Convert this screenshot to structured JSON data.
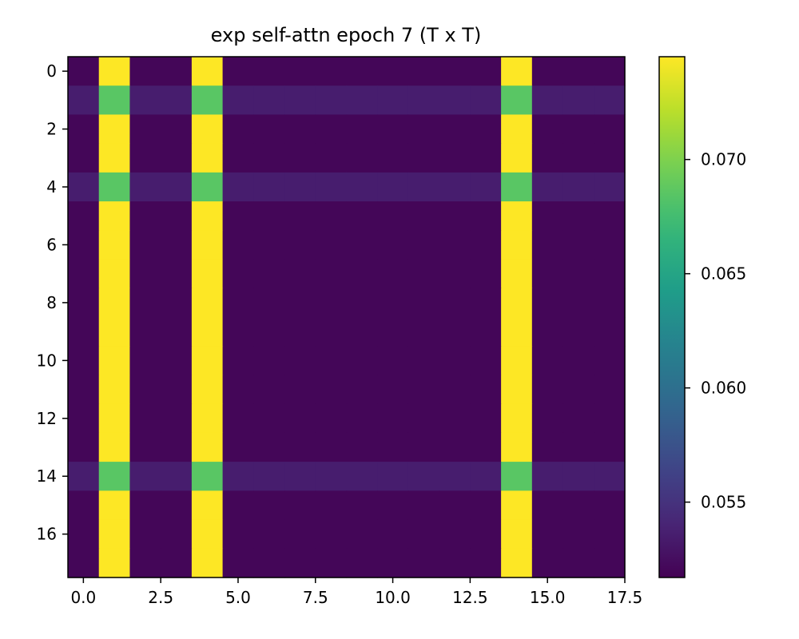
{
  "chart_data": {
    "type": "heatmap",
    "title": "exp self-attn epoch 7 (T x T)",
    "xlabel": "",
    "ylabel": "",
    "rows": 18,
    "cols": 18,
    "xlim": [
      -0.5,
      17.5
    ],
    "ylim": [
      17.5,
      -0.5
    ],
    "x_ticks": [
      0.0,
      2.5,
      5.0,
      7.5,
      10.0,
      12.5,
      15.0,
      17.5
    ],
    "x_tick_labels": [
      "0.0",
      "2.5",
      "5.0",
      "7.5",
      "10.0",
      "12.5",
      "15.0",
      "17.5"
    ],
    "y_ticks": [
      0,
      2,
      4,
      6,
      8,
      10,
      12,
      14,
      16
    ],
    "y_tick_labels": [
      "0",
      "2",
      "4",
      "6",
      "8",
      "10",
      "12",
      "14",
      "16"
    ],
    "value_range": [
      0.0517,
      0.0745
    ],
    "colorbar_ticks": [
      0.055,
      0.06,
      0.065,
      0.07
    ],
    "colorbar_tick_labels": [
      "0.055",
      "0.060",
      "0.065",
      "0.070"
    ],
    "colormap": "viridis",
    "values": [
      [
        0.052,
        0.0745,
        0.052,
        0.052,
        0.0745,
        0.052,
        0.052,
        0.052,
        0.052,
        0.052,
        0.052,
        0.052,
        0.052,
        0.052,
        0.0745,
        0.052,
        0.052,
        0.052
      ],
      [
        0.0535,
        0.0685,
        0.0535,
        0.0535,
        0.0685,
        0.0535,
        0.0535,
        0.0535,
        0.0535,
        0.0535,
        0.0535,
        0.0535,
        0.0535,
        0.0535,
        0.0685,
        0.0535,
        0.0535,
        0.0535
      ],
      [
        0.052,
        0.0745,
        0.052,
        0.052,
        0.0745,
        0.052,
        0.052,
        0.052,
        0.052,
        0.052,
        0.052,
        0.052,
        0.052,
        0.052,
        0.0745,
        0.052,
        0.052,
        0.052
      ],
      [
        0.052,
        0.0745,
        0.052,
        0.052,
        0.0745,
        0.052,
        0.052,
        0.052,
        0.052,
        0.052,
        0.052,
        0.052,
        0.052,
        0.052,
        0.0745,
        0.052,
        0.052,
        0.052
      ],
      [
        0.0535,
        0.0685,
        0.0535,
        0.0535,
        0.0685,
        0.0535,
        0.0535,
        0.0535,
        0.0535,
        0.0535,
        0.0535,
        0.0535,
        0.0535,
        0.0535,
        0.0685,
        0.0535,
        0.0535,
        0.0535
      ],
      [
        0.052,
        0.0745,
        0.052,
        0.052,
        0.0745,
        0.052,
        0.052,
        0.052,
        0.052,
        0.052,
        0.052,
        0.052,
        0.052,
        0.052,
        0.0745,
        0.052,
        0.052,
        0.052
      ],
      [
        0.052,
        0.0745,
        0.052,
        0.052,
        0.0745,
        0.052,
        0.052,
        0.052,
        0.052,
        0.052,
        0.052,
        0.052,
        0.052,
        0.052,
        0.0745,
        0.052,
        0.052,
        0.052
      ],
      [
        0.052,
        0.0745,
        0.052,
        0.052,
        0.0745,
        0.052,
        0.052,
        0.052,
        0.052,
        0.052,
        0.052,
        0.052,
        0.052,
        0.052,
        0.0745,
        0.052,
        0.052,
        0.052
      ],
      [
        0.052,
        0.0745,
        0.052,
        0.052,
        0.0745,
        0.052,
        0.052,
        0.052,
        0.052,
        0.052,
        0.052,
        0.052,
        0.052,
        0.052,
        0.0745,
        0.052,
        0.052,
        0.052
      ],
      [
        0.052,
        0.0745,
        0.052,
        0.052,
        0.0745,
        0.052,
        0.052,
        0.052,
        0.052,
        0.052,
        0.052,
        0.052,
        0.052,
        0.052,
        0.0745,
        0.052,
        0.052,
        0.052
      ],
      [
        0.052,
        0.0745,
        0.052,
        0.052,
        0.0745,
        0.052,
        0.052,
        0.052,
        0.052,
        0.052,
        0.052,
        0.052,
        0.052,
        0.052,
        0.0745,
        0.052,
        0.052,
        0.052
      ],
      [
        0.052,
        0.0745,
        0.052,
        0.052,
        0.0745,
        0.052,
        0.052,
        0.052,
        0.052,
        0.052,
        0.052,
        0.052,
        0.052,
        0.052,
        0.0745,
        0.052,
        0.052,
        0.052
      ],
      [
        0.052,
        0.0745,
        0.052,
        0.052,
        0.0745,
        0.052,
        0.052,
        0.052,
        0.052,
        0.052,
        0.052,
        0.052,
        0.052,
        0.052,
        0.0745,
        0.052,
        0.052,
        0.052
      ],
      [
        0.052,
        0.0745,
        0.052,
        0.052,
        0.0745,
        0.052,
        0.052,
        0.052,
        0.052,
        0.052,
        0.052,
        0.052,
        0.052,
        0.052,
        0.0745,
        0.052,
        0.052,
        0.052
      ],
      [
        0.0535,
        0.0685,
        0.0535,
        0.0535,
        0.0685,
        0.0535,
        0.0535,
        0.0535,
        0.0535,
        0.0535,
        0.0535,
        0.0535,
        0.0535,
        0.0535,
        0.0685,
        0.0535,
        0.0535,
        0.0535
      ],
      [
        0.052,
        0.0745,
        0.052,
        0.052,
        0.0745,
        0.052,
        0.052,
        0.052,
        0.052,
        0.052,
        0.052,
        0.052,
        0.052,
        0.052,
        0.0745,
        0.052,
        0.052,
        0.052
      ],
      [
        0.052,
        0.0745,
        0.052,
        0.052,
        0.0745,
        0.052,
        0.052,
        0.052,
        0.052,
        0.052,
        0.052,
        0.052,
        0.052,
        0.052,
        0.0745,
        0.052,
        0.052,
        0.052
      ],
      [
        0.052,
        0.0745,
        0.052,
        0.052,
        0.0745,
        0.052,
        0.052,
        0.052,
        0.052,
        0.052,
        0.052,
        0.052,
        0.052,
        0.052,
        0.0745,
        0.052,
        0.052,
        0.052
      ]
    ]
  }
}
